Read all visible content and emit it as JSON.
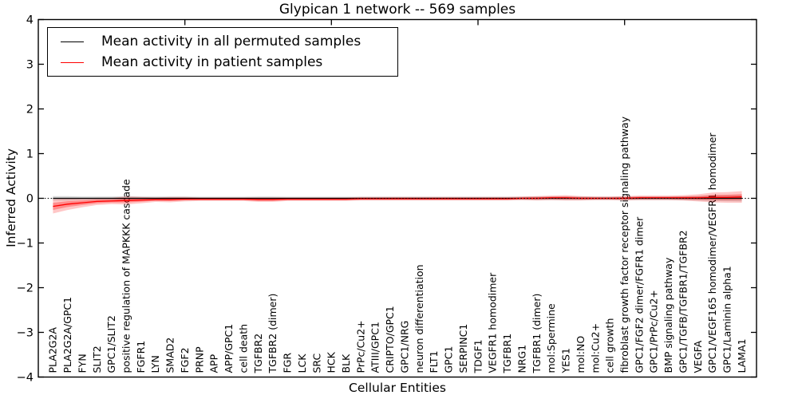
{
  "chart_data": {
    "type": "line",
    "title": "Glypican 1 network -- 569 samples",
    "xlabel": "Cellular Entities",
    "ylabel": "Inferred Activity",
    "ylim": [
      -4,
      4
    ],
    "ytick_labels": [
      "4",
      "3",
      "2",
      "1",
      "0",
      "−1",
      "−2",
      "−3",
      "−4"
    ],
    "yticks": [
      4,
      3,
      2,
      1,
      0,
      -1,
      -2,
      -3,
      -4
    ],
    "grid": false,
    "legend_position": "upper left",
    "zero_line": "dotted",
    "categories": [
      "PLA2G2A",
      "PLA2G2A/GPC1",
      "FYN",
      "SLIT2",
      "GPC1/SLIT2",
      "positive regulation of MAPKKK cascade",
      "FGFR1",
      "LYN",
      "SMAD2",
      "FGF2",
      "PRNP",
      "APP",
      "APP/GPC1",
      "cell death",
      "TGFBR2",
      "TGFBR2 (dimer)",
      "FGR",
      "LCK",
      "SRC",
      "HCK",
      "BLK",
      "PrPc/Cu2+",
      "ATIII/GPC1",
      "CRIPTO/GPC1",
      "GPC1/NRG",
      "neuron differentiation",
      "FLT1",
      "GPC1",
      "SERPINC1",
      "TDGF1",
      "VEGFR1 homodimer",
      "TGFBR1",
      "NRG1",
      "TGFBR1 (dimer)",
      "mol:Spermine",
      "YES1",
      "mol:NO",
      "mol:Cu2+",
      "cell growth",
      "fibroblast growth factor receptor signaling pathway",
      "GPC1/FGF2 dimer/FGFR1 dimer",
      "GPC1/PrPc/Cu2+",
      "BMP signaling pathway",
      "GPC1/TGFB/TGFBR1/TGFBR2",
      "VEGFA",
      "GPC1/VEGF165 homodimer/VEGFR1 homodimer",
      "GPC1/Laminin alpha1",
      "LAMA1"
    ],
    "series": [
      {
        "name": "Mean activity in all permuted samples",
        "color": "#000000",
        "values": [
          0,
          0,
          0,
          0,
          0,
          0,
          0,
          0,
          0,
          0,
          0,
          0,
          0,
          0,
          0,
          0,
          0,
          0,
          0,
          0,
          0,
          0,
          0,
          0,
          0,
          0,
          0,
          0,
          0,
          0,
          0,
          0,
          0,
          0,
          0,
          0,
          0,
          0,
          0,
          0,
          0,
          0,
          0,
          0,
          0,
          0,
          0,
          0
        ],
        "band_halfwidth": [
          0.05,
          0.05,
          0.04,
          0.04,
          0.04,
          0.05,
          0.04,
          0.04,
          0.04,
          0.04,
          0.035,
          0.035,
          0.035,
          0.035,
          0.04,
          0.04,
          0.035,
          0.035,
          0.035,
          0.035,
          0.035,
          0.035,
          0.035,
          0.035,
          0.035,
          0.035,
          0.035,
          0.035,
          0.035,
          0.035,
          0.035,
          0.035,
          0.035,
          0.04,
          0.04,
          0.04,
          0.04,
          0.035,
          0.035,
          0.04,
          0.04,
          0.04,
          0.04,
          0.045,
          0.05,
          0.06,
          0.065,
          0.07
        ]
      },
      {
        "name": "Mean activity in patient samples",
        "color": "#ff0000",
        "values": [
          -0.18,
          -0.13,
          -0.1,
          -0.07,
          -0.06,
          -0.05,
          -0.04,
          -0.03,
          -0.03,
          -0.02,
          -0.02,
          -0.02,
          -0.02,
          -0.02,
          -0.03,
          -0.03,
          -0.02,
          -0.02,
          -0.02,
          -0.02,
          -0.02,
          -0.01,
          -0.01,
          -0.01,
          -0.01,
          -0.01,
          -0.01,
          -0.01,
          -0.01,
          -0.01,
          -0.01,
          -0.01,
          0.0,
          0.0,
          0.01,
          0.01,
          0.0,
          0.0,
          0.0,
          0.0,
          0.01,
          0.01,
          0.01,
          0.01,
          0.01,
          0.02,
          0.02,
          0.03
        ],
        "band_halfwidth": [
          0.16,
          0.13,
          0.1,
          0.08,
          0.07,
          0.09,
          0.07,
          0.05,
          0.06,
          0.05,
          0.04,
          0.04,
          0.04,
          0.04,
          0.05,
          0.05,
          0.04,
          0.04,
          0.04,
          0.04,
          0.04,
          0.04,
          0.04,
          0.04,
          0.04,
          0.04,
          0.04,
          0.04,
          0.04,
          0.04,
          0.04,
          0.04,
          0.04,
          0.05,
          0.05,
          0.06,
          0.05,
          0.04,
          0.04,
          0.05,
          0.05,
          0.05,
          0.05,
          0.06,
          0.08,
          0.11,
          0.12,
          0.13
        ]
      }
    ]
  }
}
